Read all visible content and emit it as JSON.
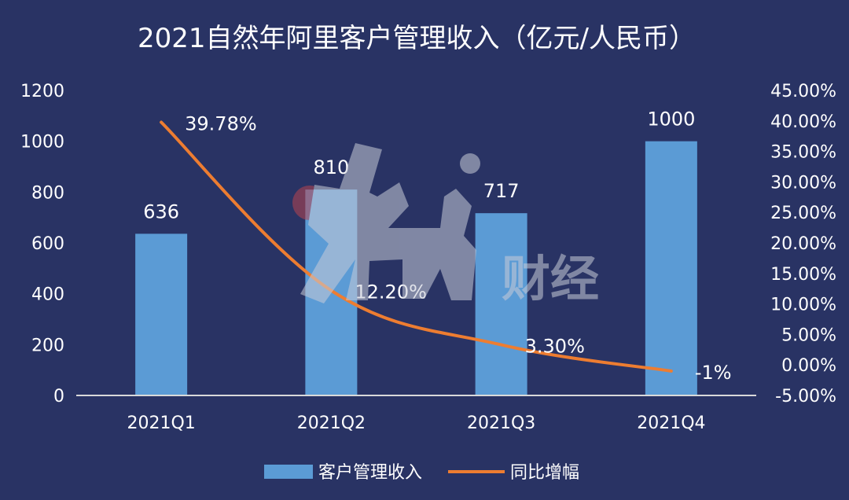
{
  "chart_data": {
    "type": "bar+line",
    "title": "2021自然年阿里客户管理收入（亿元/人民币）",
    "categories": [
      "2021Q1",
      "2021Q2",
      "2021Q3",
      "2021Q4"
    ],
    "series": [
      {
        "name": "客户管理收入",
        "type": "bar",
        "axis": "left",
        "values": [
          636,
          810,
          717,
          1000
        ],
        "labels": [
          "636",
          "810",
          "717",
          "1000"
        ]
      },
      {
        "name": "同比增幅",
        "type": "line",
        "axis": "right",
        "values": [
          39.78,
          12.2,
          3.3,
          -1
        ],
        "labels": [
          "39.78%",
          "12.20%",
          "3.30%",
          "-1%"
        ]
      }
    ],
    "y_left": {
      "ylim": [
        0,
        1200
      ],
      "ticks": [
        0,
        200,
        400,
        600,
        800,
        1000,
        1200
      ],
      "tick_labels": [
        "0",
        "200",
        "400",
        "600",
        "800",
        "1000",
        "1200"
      ]
    },
    "y_right": {
      "ylim": [
        -5,
        45
      ],
      "ticks": [
        -5,
        0,
        5,
        10,
        15,
        20,
        25,
        30,
        35,
        40,
        45
      ],
      "tick_labels": [
        "-5.00%",
        "0.00%",
        "5.00%",
        "10.00%",
        "15.00%",
        "20.00%",
        "25.00%",
        "30.00%",
        "35.00%",
        "40.00%",
        "45.00%"
      ]
    },
    "grid": false,
    "legend_position": "bottom"
  },
  "watermark": {
    "text": "燃财经"
  },
  "colors": {
    "background": "#293364",
    "bar": "#5B9BD5",
    "line": "#ED7D31",
    "text": "#FFFFFF",
    "axis": "#D9D9D9"
  }
}
